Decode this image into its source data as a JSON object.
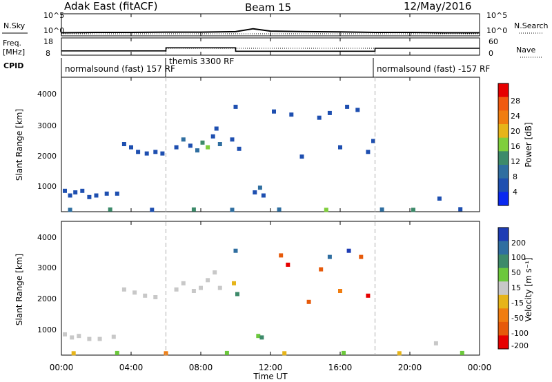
{
  "header": {
    "station": "Adak East (fitACF)",
    "beam": "Beam 15",
    "date": "12/May/2016"
  },
  "colors": {
    "axis": "#000000",
    "divider": "#aaaaaa",
    "power_scale": [
      "#0a28f0",
      "#1e4fb0",
      "#2f6ea0",
      "#3d8a6a",
      "#7fce3c",
      "#e6b419",
      "#f07d10",
      "#f05a10",
      "#e60000"
    ],
    "velocity_scale": [
      "#1e3cb4",
      "#2f6ea0",
      "#3d8a6a",
      "#6cc83c",
      "#c8c8c8",
      "#e6b419",
      "#f07d10",
      "#e65a0a",
      "#e60000"
    ]
  },
  "time_axis": {
    "label": "Time UT",
    "ticks": [
      "00:00",
      "04:00",
      "08:00",
      "12:00",
      "16:00",
      "20:00",
      "00:00"
    ],
    "range_hours": [
      0,
      24
    ],
    "mode_dividers_hours": [
      6.0,
      18.0
    ]
  },
  "panels": {
    "nsky": {
      "left_label": "N.Sky",
      "right_label": "N.Search",
      "left_ticks": [
        "10^5",
        "10^0"
      ],
      "right_ticks": [
        "10^5",
        "10^0"
      ]
    },
    "freq": {
      "left_label_1": "Freq.",
      "left_label_2": "[MHz]",
      "right_label": "Nave",
      "left_ticks": [
        "18",
        "8"
      ],
      "right_ticks": [
        "60",
        "0"
      ]
    },
    "cpid": {
      "label": "CPID",
      "segments": [
        "normalsound (fast) 157 RF",
        "themis 3300 RF",
        "normalsound (fast) -157 RF"
      ]
    }
  },
  "power_panel": {
    "ylabel": "Slant Range [km]",
    "yticks": [
      "4000",
      "3000",
      "2000",
      "1000"
    ],
    "colorbar_label": "Power [dB]",
    "colorbar_ticks": [
      "28",
      "24",
      "20",
      "16",
      "12",
      "8",
      "4"
    ]
  },
  "velocity_panel": {
    "ylabel": "Slant Range [km]",
    "yticks": [
      "4000",
      "3000",
      "2000",
      "1000"
    ],
    "colorbar_label": "Velocity [m s⁻¹]",
    "colorbar_ticks": [
      "200",
      "100",
      "50",
      "15",
      "-15",
      "-50",
      "-100",
      "-200"
    ]
  },
  "chart_data": [
    {
      "type": "line",
      "name": "N.Sky",
      "x_range_hours": [
        0,
        24
      ],
      "y_scale": "log",
      "y_range": [
        1,
        100000
      ],
      "x": [
        0,
        2,
        4,
        6,
        8,
        10,
        11,
        12,
        14,
        16,
        18,
        20,
        22,
        24
      ],
      "y": [
        5,
        6,
        6,
        7,
        7,
        9,
        40,
        12,
        9,
        8,
        6,
        6,
        5,
        5
      ]
    },
    {
      "type": "line",
      "name": "Freq.",
      "x_range_hours": [
        0,
        24
      ],
      "y_range": [
        8,
        18
      ],
      "series": [
        {
          "label": "Freq.",
          "x": [
            0,
            6,
            6,
            10,
            10,
            18,
            18,
            24
          ],
          "y": [
            10.5,
            10.5,
            12.3,
            12.3,
            10.3,
            10.3,
            12.0,
            12.0
          ]
        },
        {
          "label": "Nave",
          "x": [
            0,
            6,
            6,
            18,
            18,
            24
          ],
          "y": [
            8,
            8,
            12,
            12,
            8,
            8
          ]
        }
      ]
    },
    {
      "type": "heatmap",
      "name": "Power",
      "x_range_hours": [
        0,
        24
      ],
      "y_range_km": [
        180,
        4500
      ],
      "color_range_db": [
        0,
        32
      ],
      "points": [
        [
          0.2,
          850,
          6
        ],
        [
          0.5,
          700,
          5
        ],
        [
          0.8,
          800,
          7
        ],
        [
          1.2,
          850,
          6
        ],
        [
          1.6,
          650,
          5
        ],
        [
          2.0,
          700,
          6
        ],
        [
          2.6,
          760,
          4
        ],
        [
          3.2,
          760,
          5
        ],
        [
          3.6,
          2350,
          5
        ],
        [
          4.0,
          2250,
          6
        ],
        [
          4.4,
          2100,
          4
        ],
        [
          4.9,
          2050,
          5
        ],
        [
          5.4,
          2100,
          6
        ],
        [
          5.8,
          2050,
          4
        ],
        [
          6.6,
          2250,
          6
        ],
        [
          7.0,
          2500,
          8
        ],
        [
          7.4,
          2300,
          6
        ],
        [
          7.8,
          2150,
          10
        ],
        [
          8.1,
          2400,
          14
        ],
        [
          8.4,
          2250,
          16
        ],
        [
          8.7,
          2600,
          7
        ],
        [
          8.9,
          2850,
          6
        ],
        [
          9.1,
          2350,
          9
        ],
        [
          9.8,
          2500,
          6
        ],
        [
          10.2,
          2200,
          5
        ],
        [
          10.0,
          3550,
          4
        ],
        [
          11.1,
          800,
          6
        ],
        [
          11.4,
          950,
          9
        ],
        [
          11.6,
          700,
          4
        ],
        [
          12.2,
          3400,
          5
        ],
        [
          13.2,
          3300,
          4
        ],
        [
          13.8,
          1950,
          5
        ],
        [
          14.8,
          3200,
          6
        ],
        [
          15.4,
          3350,
          4
        ],
        [
          16.0,
          2250,
          6
        ],
        [
          16.4,
          3550,
          5
        ],
        [
          17.0,
          3450,
          4
        ],
        [
          17.6,
          2100,
          5
        ],
        [
          17.9,
          2450,
          6
        ],
        [
          0.5,
          240,
          8
        ],
        [
          2.8,
          250,
          12
        ],
        [
          5.2,
          240,
          6
        ],
        [
          7.6,
          250,
          14
        ],
        [
          9.8,
          240,
          8
        ],
        [
          12.5,
          250,
          10
        ],
        [
          15.2,
          240,
          16
        ],
        [
          18.4,
          250,
          8
        ],
        [
          20.2,
          240,
          12
        ],
        [
          21.7,
          600,
          5
        ],
        [
          22.9,
          260,
          6
        ]
      ]
    },
    {
      "type": "heatmap",
      "name": "Velocity",
      "x_range_hours": [
        0,
        24
      ],
      "y_range_km": [
        180,
        4500
      ],
      "color_range_ms": [
        -250,
        250
      ],
      "points": [
        [
          0.2,
          850,
          0
        ],
        [
          0.6,
          750,
          5
        ],
        [
          1.0,
          800,
          -5
        ],
        [
          1.6,
          700,
          0
        ],
        [
          2.2,
          700,
          3
        ],
        [
          3.0,
          770,
          -3
        ],
        [
          3.6,
          2300,
          0
        ],
        [
          4.2,
          2200,
          -5
        ],
        [
          4.8,
          2100,
          5
        ],
        [
          5.4,
          2050,
          0
        ],
        [
          6.6,
          2300,
          5
        ],
        [
          7.0,
          2500,
          0
        ],
        [
          7.6,
          2250,
          -5
        ],
        [
          8.0,
          2350,
          0
        ],
        [
          8.4,
          2600,
          3
        ],
        [
          8.8,
          2850,
          -3
        ],
        [
          9.1,
          2350,
          0
        ],
        [
          9.9,
          2500,
          -30
        ],
        [
          10.1,
          2150,
          60
        ],
        [
          10.0,
          3550,
          150
        ],
        [
          11.3,
          800,
          40
        ],
        [
          11.5,
          750,
          50
        ],
        [
          12.6,
          3400,
          -150
        ],
        [
          13.0,
          3100,
          -220
        ],
        [
          14.2,
          1900,
          -200
        ],
        [
          14.9,
          2950,
          -120
        ],
        [
          15.4,
          3350,
          180
        ],
        [
          16.0,
          2250,
          -100
        ],
        [
          16.5,
          3550,
          200
        ],
        [
          17.2,
          3350,
          -180
        ],
        [
          17.6,
          2100,
          -220
        ],
        [
          0.7,
          240,
          -40
        ],
        [
          3.2,
          250,
          20
        ],
        [
          6.0,
          240,
          -60
        ],
        [
          9.5,
          250,
          30
        ],
        [
          12.8,
          240,
          -30
        ],
        [
          16.2,
          250,
          40
        ],
        [
          19.4,
          240,
          -20
        ],
        [
          21.5,
          560,
          0
        ],
        [
          23.0,
          250,
          20
        ]
      ]
    }
  ]
}
